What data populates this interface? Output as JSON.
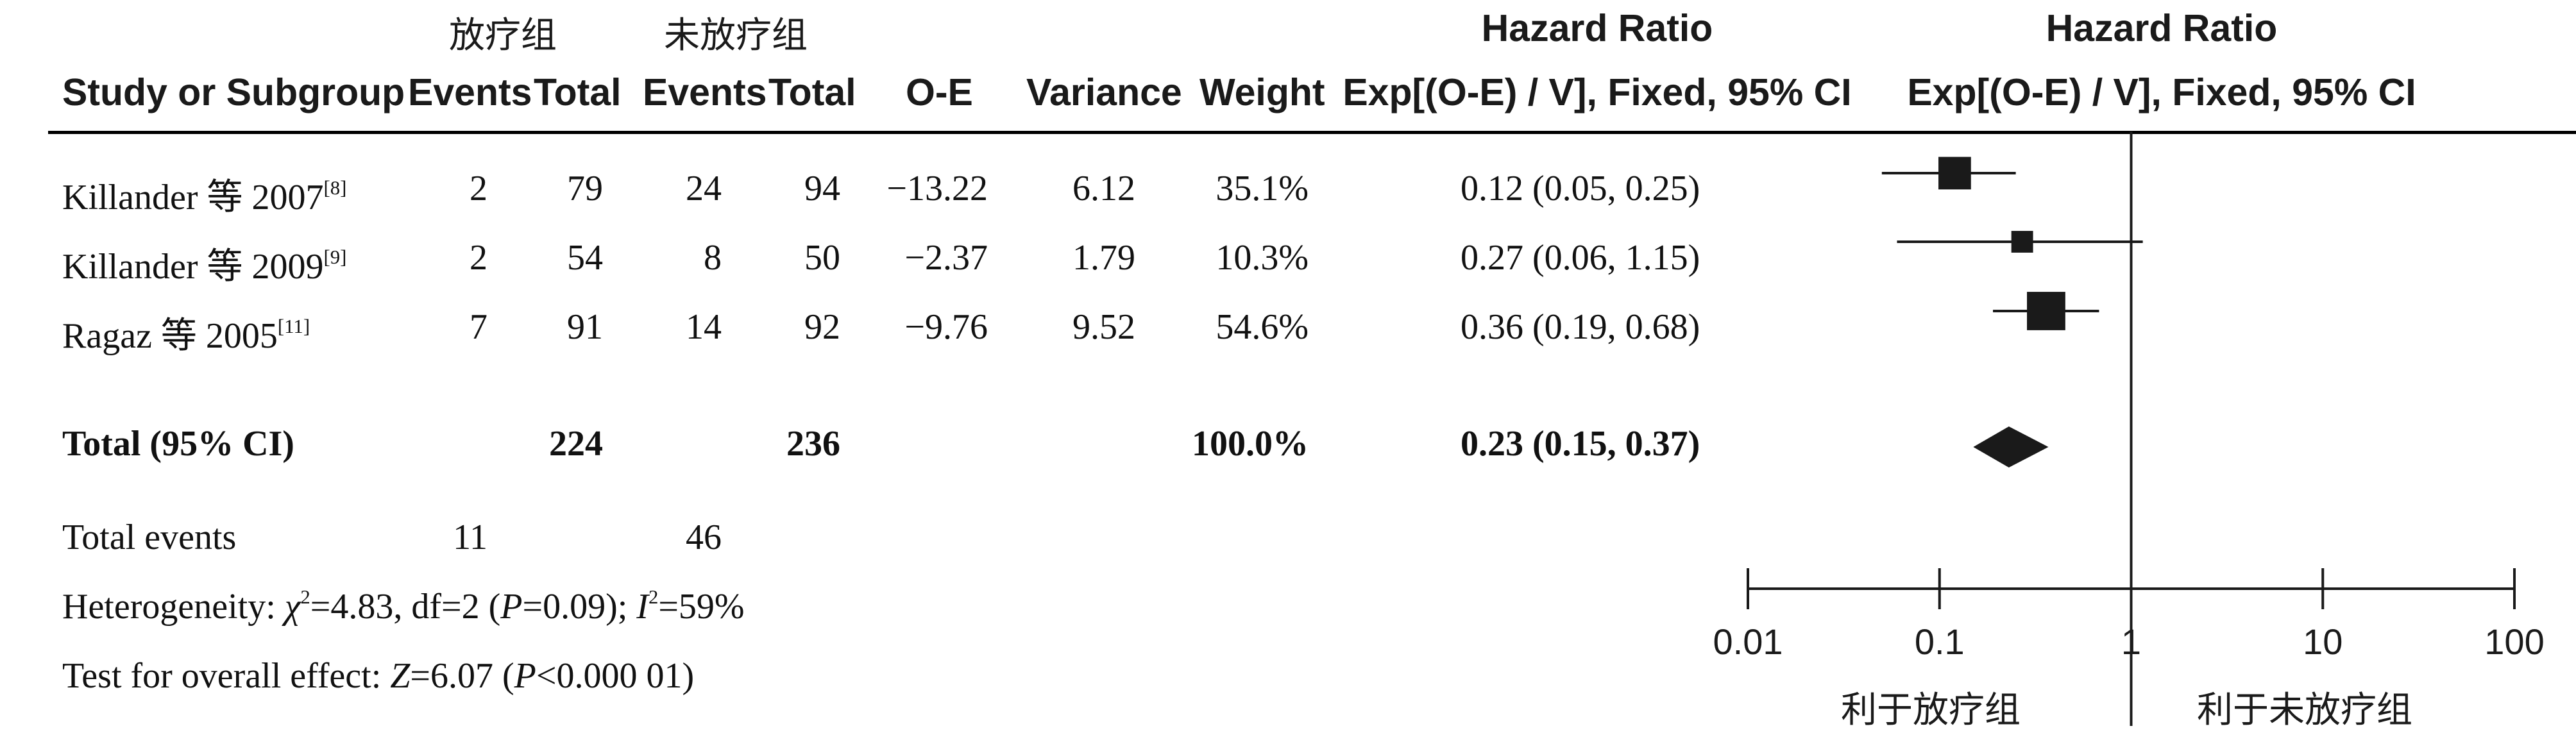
{
  "header": {
    "group1": "放疗组",
    "group2": "未放疗组",
    "study_col": "Study or Subgroup",
    "events": "Events",
    "total": "Total",
    "oe": "O-E",
    "variance": "Variance",
    "weight": "Weight",
    "hr_title": "Hazard Ratio",
    "hr_sub": "Exp[(O-E) / V], Fixed, 95% CI",
    "plot_title": "Hazard Ratio",
    "plot_sub": "Exp[(O-E) / V], Fixed, 95% CI"
  },
  "rows": [
    {
      "name": "Killander 等 2007",
      "ref": "[8]",
      "e1": "2",
      "t1": "79",
      "e2": "24",
      "t2": "94",
      "oe": "−13.22",
      "var": "6.12",
      "weight": "35.1%",
      "ci": "0.12 (0.05, 0.25)"
    },
    {
      "name": "Killander 等 2009",
      "ref": "[9]",
      "e1": "2",
      "t1": "54",
      "e2": "8",
      "t2": "50",
      "oe": "−2.37",
      "var": "1.79",
      "weight": "10.3%",
      "ci": "0.27 (0.06, 1.15)"
    },
    {
      "name": "Ragaz 等 2005",
      "ref": "[11]",
      "e1": "7",
      "t1": "91",
      "e2": "14",
      "t2": "92",
      "oe": "−9.76",
      "var": "9.52",
      "weight": "54.6%",
      "ci": "0.36 (0.19, 0.68)"
    }
  ],
  "total": {
    "label": "Total (95% CI)",
    "t1": "224",
    "t2": "236",
    "weight": "100.0%",
    "ci": "0.23 (0.15, 0.37)"
  },
  "total_events": {
    "label": "Total events",
    "e1": "11",
    "e2": "46"
  },
  "heterogeneity": {
    "prefix": "Heterogeneity: ",
    "chi": "χ",
    "chi_sup": "2",
    "chi_val": "=4.83, df=2 (",
    "p": "P",
    "p_val": "=0.09); ",
    "i": "I",
    "i_sup": "2",
    "i_val": "=59%"
  },
  "overall": {
    "prefix": "Test for overall effect: ",
    "z": "Z",
    "z_val": "=6.07 (",
    "p": "P",
    "p_val": "<0.000 01)"
  },
  "favors": {
    "left": "利于放疗组",
    "right": "利于未放疗组"
  },
  "chart_data": {
    "type": "scatter",
    "scale": "log",
    "x_ticks": [
      0.01,
      0.1,
      1,
      10,
      100
    ],
    "x_tick_labels": [
      "0.01",
      "0.1",
      "1",
      "10",
      "100"
    ],
    "xlim": [
      0.01,
      100
    ],
    "reference_line": 1,
    "series": [
      {
        "name": "Killander 等 2007",
        "estimate": 0.12,
        "lower": 0.05,
        "upper": 0.25,
        "weight": 35.1
      },
      {
        "name": "Killander 等 2009",
        "estimate": 0.27,
        "lower": 0.06,
        "upper": 1.15,
        "weight": 10.3
      },
      {
        "name": "Ragaz 等 2005",
        "estimate": 0.36,
        "lower": 0.19,
        "upper": 0.68,
        "weight": 54.6
      }
    ],
    "pooled": {
      "name": "Total (95% CI)",
      "estimate": 0.23,
      "lower": 0.15,
      "upper": 0.37
    },
    "colors": {
      "marker": "#1a1a1a",
      "line": "#1a1a1a"
    }
  }
}
